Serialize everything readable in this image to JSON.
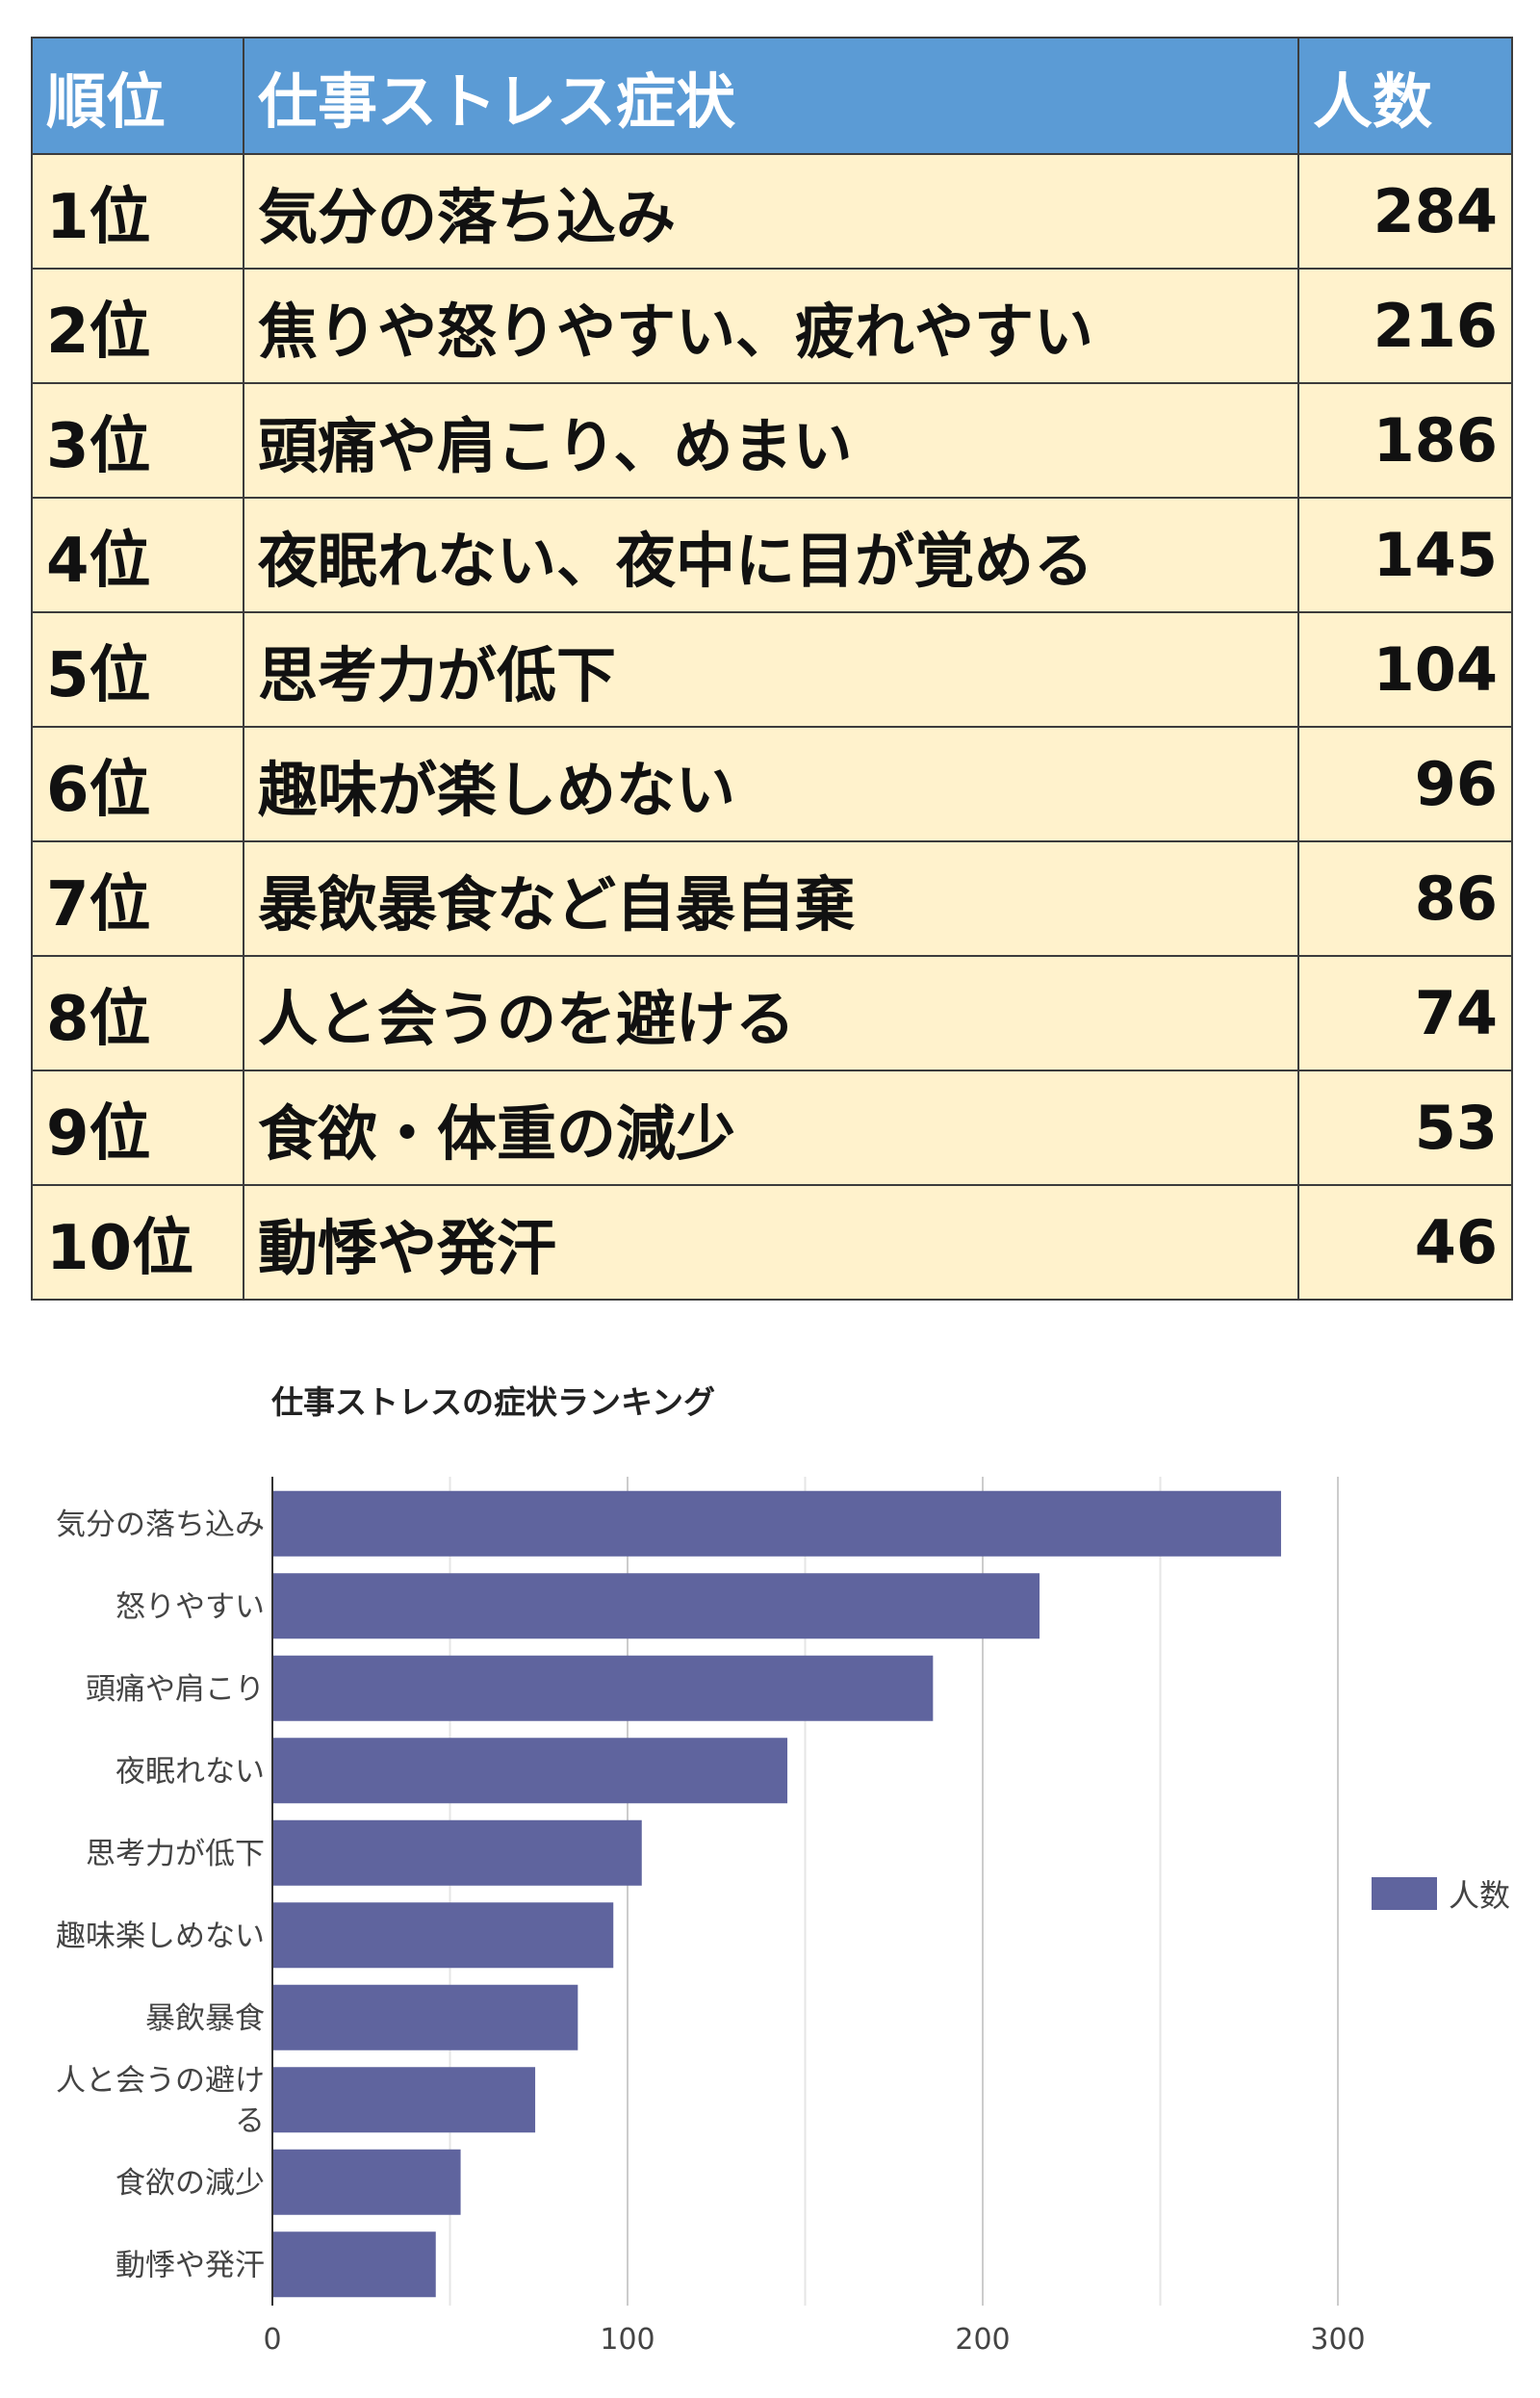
{
  "table": {
    "headers": [
      "順位",
      "仕事ストレス症状",
      "人数"
    ],
    "rows": [
      {
        "rank": "1位",
        "symptom": "気分の落ち込み",
        "count": "284"
      },
      {
        "rank": "2位",
        "symptom": "焦りや怒りやすい、疲れやすい",
        "count": "216"
      },
      {
        "rank": "3位",
        "symptom": "頭痛や肩こり、めまい",
        "count": "186"
      },
      {
        "rank": "4位",
        "symptom": "夜眠れない、夜中に目が覚める",
        "count": "145"
      },
      {
        "rank": "5位",
        "symptom": "思考力が低下",
        "count": "104"
      },
      {
        "rank": "6位",
        "symptom": "趣味が楽しめない",
        "count": "96"
      },
      {
        "rank": "7位",
        "symptom": "暴飲暴食など自暴自棄",
        "count": "86"
      },
      {
        "rank": "8位",
        "symptom": "人と会うのを避ける",
        "count": "74"
      },
      {
        "rank": "9位",
        "symptom": "食欲・体重の減少",
        "count": "53"
      },
      {
        "rank": "10位",
        "symptom": "動悸や発汗",
        "count": "46"
      }
    ],
    "colors": {
      "header_bg": "#5b9bd5",
      "row_bg": "#fff2cc",
      "border": "#3c3c3c"
    }
  },
  "chart_data": {
    "type": "bar",
    "orientation": "horizontal",
    "title": "仕事ストレスの症状ランキング",
    "categories": [
      [
        "気分の落ち込み"
      ],
      [
        "怒りやすい"
      ],
      [
        "頭痛や肩こり"
      ],
      [
        "夜眠れない"
      ],
      [
        "思考力が低下"
      ],
      [
        "趣味楽しめない"
      ],
      [
        "暴飲暴食"
      ],
      [
        "人と会うの避け",
        "る"
      ],
      [
        "食欲の減少"
      ],
      [
        "動悸や発汗"
      ]
    ],
    "series": [
      {
        "name": "人数",
        "values": [
          284,
          216,
          186,
          145,
          104,
          96,
          86,
          74,
          53,
          46
        ],
        "color": "#5f649e"
      }
    ],
    "xlim": [
      0,
      300
    ],
    "xticks": [
      0,
      100,
      200,
      300
    ],
    "grid": true,
    "legend": "right"
  }
}
